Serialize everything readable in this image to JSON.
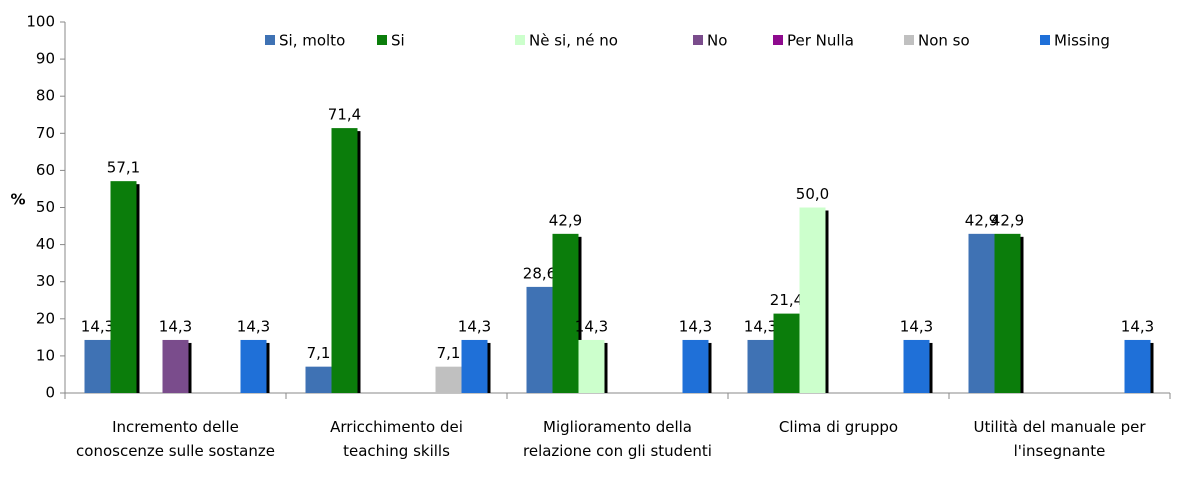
{
  "chart_data": {
    "type": "bar",
    "ylabel": "%",
    "categories": [
      "Incremento delle conoscenze sulle sostanze",
      "Arricchimento dei teaching skills",
      "Miglioramento della relazione con gli studenti",
      "Clima di gruppo",
      "Utilità del manuale per l'insegnante"
    ],
    "series": [
      {
        "name": "Si, molto",
        "color": "#3f72b4",
        "values": [
          14.3,
          7.1,
          28.6,
          14.3,
          42.9
        ],
        "value_labels": [
          "14,3",
          "7,1",
          "28,6",
          "14,3",
          "42,9"
        ]
      },
      {
        "name": "Si",
        "color": "#0b7d0b",
        "values": [
          57.1,
          71.4,
          42.9,
          21.4,
          42.9
        ],
        "value_labels": [
          "57,1",
          "71,4",
          "42,9",
          "21,4",
          "42,9"
        ]
      },
      {
        "name": "Nè si, né no",
        "color": "#ccffcc",
        "values": [
          null,
          null,
          14.3,
          50.0,
          null
        ],
        "value_labels": [
          null,
          null,
          "14,3",
          "50,0",
          null
        ]
      },
      {
        "name": "No",
        "color": "#7a4c8c",
        "values": [
          14.3,
          null,
          null,
          null,
          null
        ],
        "value_labels": [
          "14,3",
          null,
          null,
          null,
          null
        ]
      },
      {
        "name": "Per Nulla",
        "color": "#8e0a8e",
        "values": [
          null,
          null,
          null,
          null,
          null
        ],
        "value_labels": [
          null,
          null,
          null,
          null,
          null
        ]
      },
      {
        "name": "Non so",
        "color": "#c0c0c0",
        "values": [
          null,
          7.1,
          null,
          null,
          null
        ],
        "value_labels": [
          null,
          "7,1",
          null,
          null,
          null
        ]
      },
      {
        "name": "Missing",
        "color": "#1f70d8",
        "values": [
          14.3,
          14.3,
          14.3,
          14.3,
          14.3
        ],
        "value_labels": [
          "14,3",
          "14,3",
          "14,3",
          "14,3",
          "14,3"
        ]
      }
    ],
    "ylim": [
      0,
      100
    ],
    "yticks": [
      0,
      10,
      20,
      30,
      40,
      50,
      60,
      70,
      80,
      90,
      100
    ],
    "grid": false,
    "legend": "top"
  }
}
